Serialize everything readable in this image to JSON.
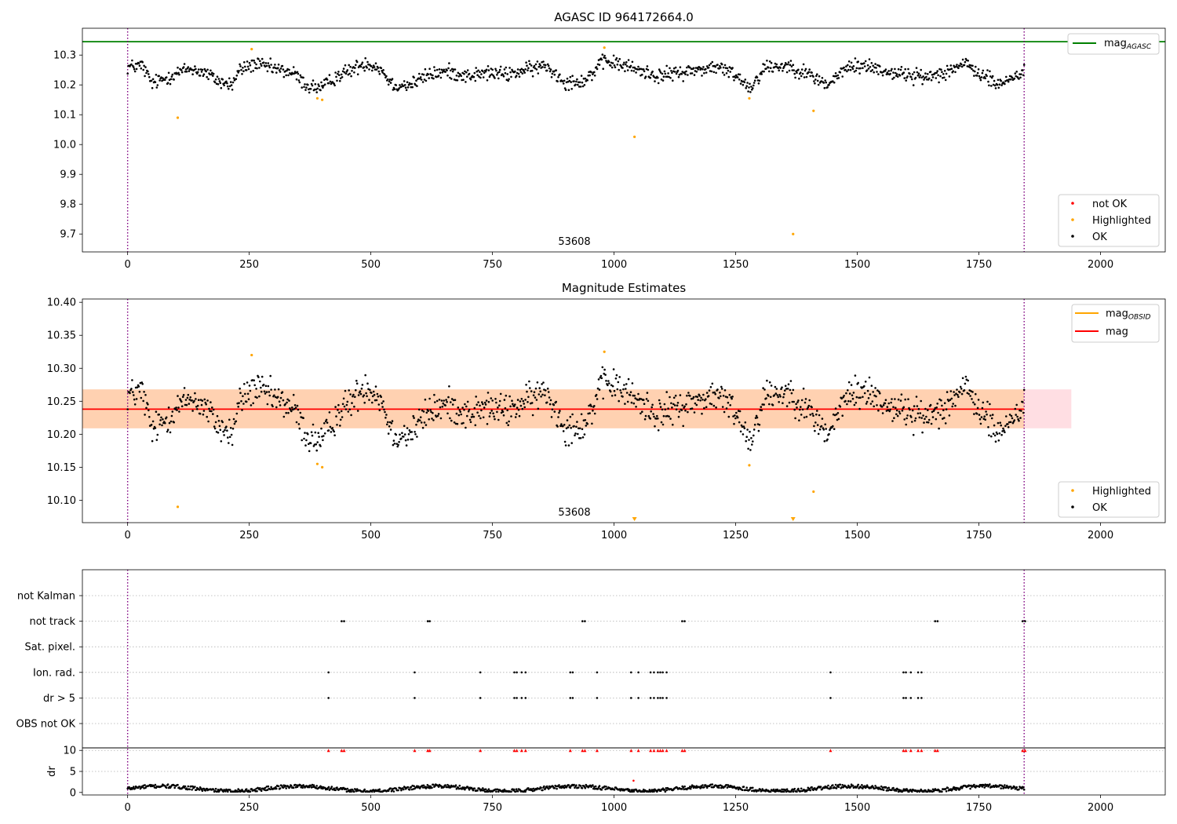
{
  "chart_data": [
    {
      "type": "scatter",
      "title": "AGASC ID 964172664.0",
      "xlim": [
        -93,
        2133
      ],
      "ylim": [
        9.64,
        10.39
      ],
      "xticks": [
        0,
        250,
        500,
        750,
        1000,
        1250,
        1500,
        1750,
        2000
      ],
      "yticks": [
        9.7,
        9.8,
        9.9,
        10.0,
        10.1,
        10.2,
        10.3
      ],
      "annotation": "53608",
      "vlines": [
        0,
        1843
      ],
      "hline": {
        "name": "mag_AGASC",
        "value": 10.345,
        "color": "#008000"
      },
      "legend_lines": [
        {
          "label": "mag",
          "sub": "AGASC",
          "color": "#008000"
        }
      ],
      "legend_points": [
        {
          "label": "not OK",
          "color": "#ff0000"
        },
        {
          "label": "Highlighted",
          "color": "#ffa500"
        },
        {
          "label": "OK",
          "color": "#000000"
        }
      ],
      "highlighted": [
        [
          103,
          10.09
        ],
        [
          255,
          10.32
        ],
        [
          390,
          10.155
        ],
        [
          400,
          10.15
        ],
        [
          980,
          10.325
        ],
        [
          1042,
          10.026
        ],
        [
          1278,
          10.155
        ],
        [
          1368,
          9.7
        ],
        [
          1410,
          10.113
        ]
      ],
      "ok_profile": [
        [
          0,
          10.26
        ],
        [
          30,
          10.265
        ],
        [
          50,
          10.205
        ],
        [
          75,
          10.22
        ],
        [
          100,
          10.24
        ],
        [
          130,
          10.255
        ],
        [
          160,
          10.24
        ],
        [
          190,
          10.21
        ],
        [
          215,
          10.2
        ],
        [
          230,
          10.25
        ],
        [
          260,
          10.27
        ],
        [
          300,
          10.255
        ],
        [
          340,
          10.24
        ],
        [
          370,
          10.195
        ],
        [
          400,
          10.19
        ],
        [
          430,
          10.23
        ],
        [
          460,
          10.25
        ],
        [
          490,
          10.275
        ],
        [
          520,
          10.255
        ],
        [
          545,
          10.2
        ],
        [
          580,
          10.2
        ],
        [
          620,
          10.235
        ],
        [
          660,
          10.245
        ],
        [
          700,
          10.23
        ],
        [
          740,
          10.24
        ],
        [
          780,
          10.235
        ],
        [
          820,
          10.25
        ],
        [
          860,
          10.265
        ],
        [
          900,
          10.21
        ],
        [
          940,
          10.215
        ],
        [
          980,
          10.28
        ],
        [
          1010,
          10.27
        ],
        [
          1050,
          10.25
        ],
        [
          1090,
          10.23
        ],
        [
          1130,
          10.24
        ],
        [
          1170,
          10.25
        ],
        [
          1210,
          10.26
        ],
        [
          1250,
          10.235
        ],
        [
          1280,
          10.19
        ],
        [
          1310,
          10.26
        ],
        [
          1360,
          10.265
        ],
        [
          1400,
          10.235
        ],
        [
          1440,
          10.2
        ],
        [
          1480,
          10.26
        ],
        [
          1520,
          10.265
        ],
        [
          1560,
          10.245
        ],
        [
          1600,
          10.235
        ],
        [
          1640,
          10.225
        ],
        [
          1680,
          10.245
        ],
        [
          1720,
          10.27
        ],
        [
          1760,
          10.23
        ],
        [
          1790,
          10.2
        ],
        [
          1843,
          10.245
        ]
      ]
    },
    {
      "type": "scatter",
      "title": "Magnitude Estimates",
      "xlim": [
        -93,
        2133
      ],
      "ylim": [
        10.066,
        10.405
      ],
      "xticks": [
        0,
        250,
        500,
        750,
        1000,
        1250,
        1500,
        1750,
        2000
      ],
      "yticks": [
        10.1,
        10.15,
        10.2,
        10.25,
        10.3,
        10.35,
        10.4
      ],
      "annotation": "53608",
      "vlines": [
        0,
        1843
      ],
      "band": {
        "x": [
          -93,
          1940
        ],
        "y": [
          10.209,
          10.268
        ]
      },
      "mag_line": {
        "value": 10.238,
        "x": [
          -93,
          1843
        ],
        "color": "#ff0000"
      },
      "legend_lines": [
        {
          "label": "mag",
          "sub": "OBSID",
          "color": "#ffa500"
        },
        {
          "label": "mag",
          "sub": "",
          "color": "#ff0000"
        }
      ],
      "legend_points": [
        {
          "label": "Highlighted",
          "color": "#ffa500"
        },
        {
          "label": "OK",
          "color": "#000000"
        }
      ],
      "highlighted": [
        [
          103,
          10.09
        ],
        [
          255,
          10.32
        ],
        [
          390,
          10.155
        ],
        [
          400,
          10.15
        ],
        [
          980,
          10.325
        ],
        [
          1278,
          10.153
        ],
        [
          1410,
          10.113
        ]
      ],
      "offscale_markers": [
        1042,
        1368
      ]
    },
    {
      "type": "scatter",
      "xlim": [
        -93,
        2133
      ],
      "xticks": [
        0,
        250,
        500,
        750,
        1000,
        1250,
        1500,
        1750,
        2000
      ],
      "flag_rows": [
        "not Kalman",
        "not track",
        "Sat. pixel.",
        "Ion. rad.",
        "dr > 5",
        "OBS not OK"
      ],
      "flag_events": {
        "not track": [
          440,
          445,
          617,
          621,
          935,
          940,
          1140,
          1145,
          1660,
          1665,
          1840,
          1845
        ],
        "Ion. rad.": [
          413,
          590,
          725,
          795,
          800,
          810,
          818,
          910,
          915,
          965,
          1035,
          1050,
          1075,
          1082,
          1090,
          1095,
          1100,
          1108,
          1445,
          1595,
          1600,
          1610,
          1625,
          1632
        ],
        "dr > 5": [
          413,
          590,
          725,
          795,
          800,
          810,
          818,
          910,
          915,
          965,
          1035,
          1050,
          1075,
          1082,
          1090,
          1095,
          1100,
          1108,
          1445,
          1595,
          1600,
          1610,
          1625,
          1632
        ]
      },
      "dr": {
        "ylabel": "dr",
        "yticks": [
          0,
          5,
          10
        ],
        "ylim": [
          -0.6,
          10.6
        ],
        "ceiling_markers": [
          413,
          440,
          445,
          590,
          617,
          621,
          725,
          795,
          800,
          810,
          818,
          910,
          935,
          940,
          965,
          1035,
          1050,
          1075,
          1082,
          1090,
          1095,
          1100,
          1108,
          1140,
          1145,
          1445,
          1595,
          1600,
          1610,
          1625,
          1632,
          1660,
          1665,
          1840,
          1845
        ],
        "spike": [
          1040,
          2.8
        ]
      }
    }
  ]
}
